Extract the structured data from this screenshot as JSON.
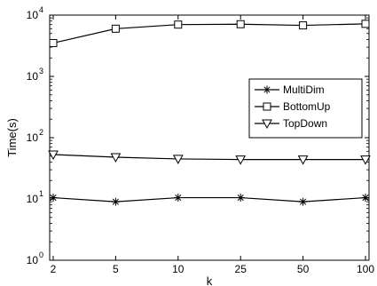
{
  "chart_data": {
    "type": "line",
    "xlabel": "k",
    "ylabel": "Time(s)",
    "categories": [
      "2",
      "5",
      "10",
      "25",
      "50",
      "100"
    ],
    "y_scale": "log",
    "ylim": [
      1,
      10000
    ],
    "y_ticks": [
      {
        "value": 1,
        "base": "10",
        "exp": "0"
      },
      {
        "value": 10,
        "base": "10",
        "exp": "1"
      },
      {
        "value": 100,
        "base": "10",
        "exp": "2"
      },
      {
        "value": 1000,
        "base": "10",
        "exp": "3"
      },
      {
        "value": 10000,
        "base": "10",
        "exp": "4"
      }
    ],
    "grid": false,
    "legend_position": "right",
    "series": [
      {
        "name": "MultiDim",
        "marker": "asterisk",
        "values": [
          10.5,
          9,
          10.5,
          10.5,
          9,
          10.5
        ]
      },
      {
        "name": "BottomUp",
        "marker": "square",
        "values": [
          3500,
          6000,
          7000,
          7100,
          6800,
          7200
        ]
      },
      {
        "name": "TopDown",
        "marker": "triangle-down",
        "values": [
          53,
          48,
          45,
          44,
          44,
          44
        ]
      }
    ]
  }
}
